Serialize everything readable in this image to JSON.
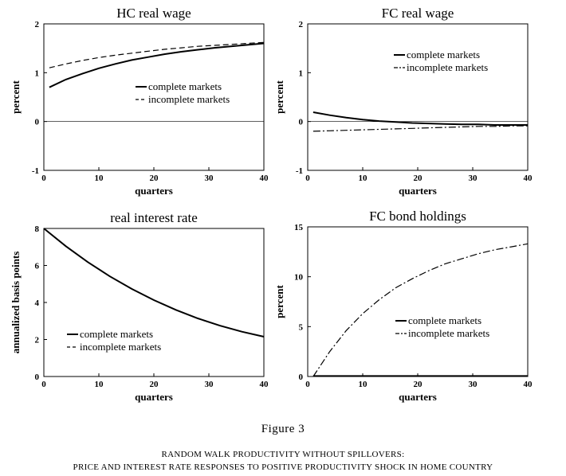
{
  "caption": {
    "label": "Figure 3",
    "title": "RANDOM WALK PRODUCTIVITY WITHOUT SPILLOVERS:",
    "subtitle": "PRICE AND INTEREST RATE RESPONSES TO POSITIVE PRODUCTIVITY SHOCK IN HOME COUNTRY"
  },
  "chart_data": [
    {
      "type": "line",
      "title": "HC real wage",
      "xlabel": "quarters",
      "ylabel": "percent",
      "xlim": [
        0,
        40
      ],
      "ylim": [
        -1,
        2
      ],
      "xticks": [
        0,
        10,
        20,
        30,
        40
      ],
      "yticks": [
        -1,
        0,
        1,
        2
      ],
      "zero_line": true,
      "legend_position": "center-right",
      "series": [
        {
          "name": "complete markets",
          "style": "solid",
          "x": [
            1,
            4,
            7,
            10,
            13,
            16,
            19,
            22,
            25,
            28,
            31,
            34,
            37,
            40
          ],
          "y": [
            0.7,
            0.86,
            0.98,
            1.09,
            1.18,
            1.26,
            1.32,
            1.38,
            1.43,
            1.47,
            1.51,
            1.54,
            1.57,
            1.6
          ]
        },
        {
          "name": "incomplete markets",
          "style": "dashed",
          "x": [
            1,
            4,
            7,
            10,
            13,
            16,
            19,
            22,
            25,
            28,
            31,
            34,
            37,
            40
          ],
          "y": [
            1.1,
            1.18,
            1.25,
            1.31,
            1.36,
            1.4,
            1.44,
            1.48,
            1.51,
            1.54,
            1.56,
            1.58,
            1.6,
            1.62
          ]
        }
      ]
    },
    {
      "type": "line",
      "title": "FC real wage",
      "xlabel": "quarters",
      "ylabel": "percent",
      "xlim": [
        0,
        40
      ],
      "ylim": [
        -1,
        2
      ],
      "xticks": [
        0,
        10,
        20,
        30,
        40
      ],
      "yticks": [
        -1,
        0,
        1,
        2
      ],
      "zero_line": true,
      "legend_position": "top-right",
      "series": [
        {
          "name": "complete markets",
          "style": "solid",
          "x": [
            1,
            4,
            7,
            10,
            13,
            16,
            19,
            22,
            25,
            28,
            31,
            34,
            37,
            40
          ],
          "y": [
            0.19,
            0.13,
            0.08,
            0.04,
            0.01,
            -0.01,
            -0.03,
            -0.04,
            -0.05,
            -0.06,
            -0.06,
            -0.07,
            -0.07,
            -0.07
          ]
        },
        {
          "name": "incomplete markets",
          "style": "dashdot",
          "x": [
            1,
            4,
            7,
            10,
            13,
            16,
            19,
            22,
            25,
            28,
            31,
            34,
            37,
            40
          ],
          "y": [
            -0.2,
            -0.19,
            -0.18,
            -0.17,
            -0.16,
            -0.15,
            -0.14,
            -0.13,
            -0.12,
            -0.11,
            -0.1,
            -0.1,
            -0.09,
            -0.09
          ]
        }
      ]
    },
    {
      "type": "line",
      "title": "real interest rate",
      "xlabel": "quarters",
      "ylabel": "annualized basis points",
      "xlim": [
        0,
        40
      ],
      "ylim": [
        0,
        8
      ],
      "xticks": [
        0,
        10,
        20,
        30,
        40
      ],
      "yticks": [
        0,
        2,
        4,
        6,
        8
      ],
      "zero_line": false,
      "legend_position": "bottom-left",
      "series": [
        {
          "name": "complete markets",
          "style": "solid",
          "x": [
            0,
            4,
            8,
            12,
            16,
            20,
            24,
            28,
            32,
            36,
            40
          ],
          "y": [
            8.0,
            7.04,
            6.18,
            5.41,
            4.73,
            4.13,
            3.6,
            3.14,
            2.75,
            2.42,
            2.15
          ]
        },
        {
          "name": "incomplete markets",
          "style": "dashed",
          "x": [
            0,
            4,
            8,
            12,
            16,
            20,
            24,
            28,
            32,
            36,
            40
          ],
          "y": [
            8.0,
            7.04,
            6.18,
            5.41,
            4.73,
            4.13,
            3.6,
            3.14,
            2.75,
            2.42,
            2.15
          ]
        }
      ]
    },
    {
      "type": "line",
      "title": "FC bond holdings",
      "xlabel": "quarters",
      "ylabel": "percent",
      "xlim": [
        0,
        40
      ],
      "ylim": [
        0,
        15
      ],
      "xticks": [
        0,
        10,
        20,
        30,
        40
      ],
      "yticks": [
        0,
        5,
        10,
        15
      ],
      "zero_line": false,
      "legend_position": "bottom-right",
      "series": [
        {
          "name": "complete markets",
          "style": "solid",
          "x": [
            1,
            10,
            20,
            30,
            40
          ],
          "y": [
            0.05,
            0.05,
            0.05,
            0.05,
            0.05
          ]
        },
        {
          "name": "incomplete markets",
          "style": "dashdot",
          "x": [
            1,
            4,
            7,
            10,
            13,
            16,
            19,
            22,
            25,
            28,
            31,
            34,
            37,
            40
          ],
          "y": [
            0.0,
            2.5,
            4.6,
            6.3,
            7.7,
            8.9,
            9.8,
            10.6,
            11.3,
            11.8,
            12.3,
            12.7,
            13.0,
            13.3
          ]
        }
      ]
    }
  ]
}
